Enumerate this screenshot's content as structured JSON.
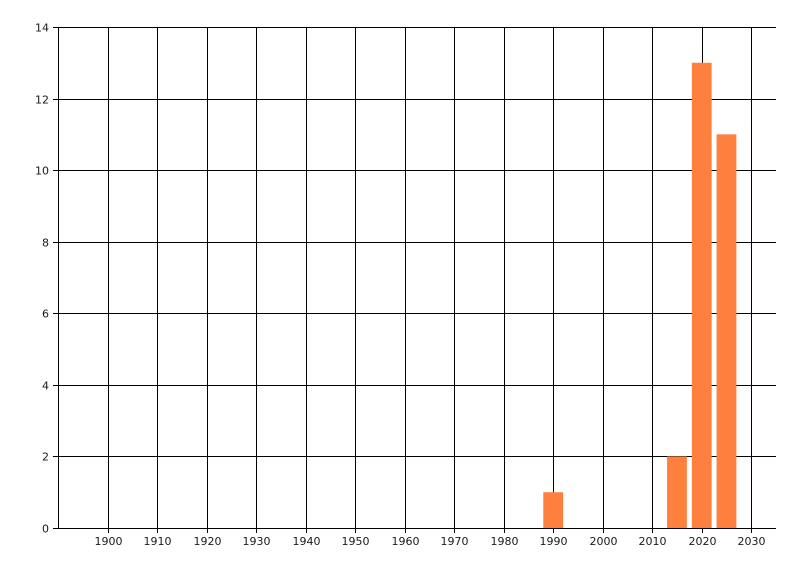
{
  "chart_data": {
    "type": "bar",
    "title": "",
    "xlabel": "",
    "ylabel": "",
    "x": [
      1990,
      2015,
      2020,
      2025
    ],
    "values": [
      1,
      2,
      13,
      11
    ],
    "bar_width_years": 4,
    "xlim": [
      1890,
      2035
    ],
    "ylim": [
      0,
      14
    ],
    "xticks": [
      1900,
      1910,
      1920,
      1930,
      1940,
      1950,
      1960,
      1970,
      1980,
      1990,
      2000,
      2010,
      2020,
      2030
    ],
    "yticks": [
      0,
      2,
      4,
      6,
      8,
      10,
      12,
      14
    ],
    "grid": true,
    "legend": "none",
    "bar_color": "#ff7f3f",
    "grid_color": "#000000"
  }
}
